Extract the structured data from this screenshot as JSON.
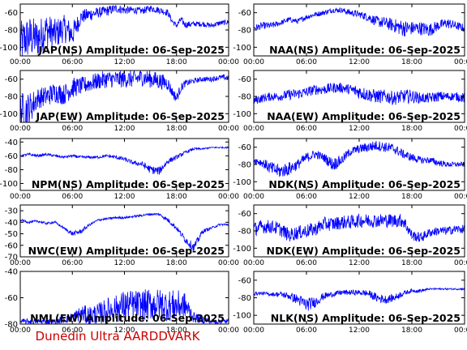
{
  "figure": {
    "footer": "Dunedin Ultra AARDDVARK",
    "colors": {
      "trace": "#0000ff",
      "axis": "#000000",
      "footer": "#cc0000"
    }
  },
  "chart_data": [
    {
      "type": "line",
      "title": "JAP(NS) Amplitude: 06-Sep-2025",
      "xlabel": "",
      "ylabel": "",
      "x_ticks": [
        "00:00",
        "06:00",
        "12:00",
        "18:00",
        "00:00"
      ],
      "xlim": [
        0,
        24
      ],
      "ylim": [
        -110,
        -50
      ],
      "y_ticks": [
        -100,
        -80,
        -60
      ],
      "grid": false,
      "series": [
        {
          "x": [
            0,
            1,
            2,
            3,
            4,
            5,
            6,
            7,
            8,
            9,
            10,
            11,
            12,
            13,
            14,
            15,
            16,
            17,
            17.5,
            18,
            18.5,
            19,
            20,
            21,
            22,
            23,
            24
          ],
          "y": [
            -95,
            -88,
            -90,
            -80,
            -85,
            -78,
            -85,
            -65,
            -62,
            -60,
            -58,
            -55,
            -57,
            -57,
            -58,
            -55,
            -57,
            -60,
            -70,
            -75,
            -68,
            -74,
            -73,
            -73,
            -75,
            -72,
            -71
          ],
          "spread": [
            25,
            25,
            22,
            20,
            18,
            16,
            15,
            8,
            8,
            6,
            6,
            5,
            5,
            4,
            4,
            4,
            4,
            4,
            3,
            3,
            4,
            4,
            3,
            3,
            3,
            3,
            3
          ]
        }
      ]
    },
    {
      "type": "line",
      "title": "NAA(NS) Amplitude: 06-Sep-2025",
      "xlabel": "",
      "ylabel": "",
      "x_ticks": [
        "00:00",
        "06:00",
        "12:00",
        "18:00",
        "00:00"
      ],
      "xlim": [
        0,
        24
      ],
      "ylim": [
        -110,
        -50
      ],
      "y_ticks": [
        -100,
        -80,
        -60
      ],
      "grid": false,
      "series": [
        {
          "x": [
            0,
            1,
            2,
            3,
            4,
            5,
            6,
            7,
            8,
            9,
            10,
            11,
            12,
            13,
            14,
            15,
            16,
            17,
            18,
            19,
            20,
            21,
            22,
            23,
            24
          ],
          "y": [
            -78,
            -75,
            -75,
            -72,
            -68,
            -70,
            -65,
            -62,
            -60,
            -57,
            -57,
            -60,
            -62,
            -65,
            -70,
            -72,
            -75,
            -78,
            -78,
            -78,
            -80,
            -75,
            -72,
            -75,
            -78
          ],
          "spread": [
            4,
            4,
            4,
            3,
            3,
            3,
            3,
            3,
            3,
            3,
            3,
            4,
            4,
            5,
            6,
            7,
            8,
            10,
            8,
            8,
            8,
            6,
            6,
            5,
            5
          ]
        }
      ]
    },
    {
      "type": "line",
      "title": "JAP(EW) Amplitude: 06-Sep-2025",
      "xlabel": "",
      "ylabel": "",
      "x_ticks": [
        "00:00",
        "06:00",
        "12:00",
        "18:00",
        "00:00"
      ],
      "xlim": [
        0,
        24
      ],
      "ylim": [
        -110,
        -50
      ],
      "y_ticks": [
        -100,
        -80,
        -60
      ],
      "grid": false,
      "series": [
        {
          "x": [
            0,
            1,
            2,
            3,
            4,
            5,
            6,
            7,
            8,
            9,
            10,
            11,
            12,
            13,
            14,
            15,
            16,
            17,
            17.5,
            18,
            18.5,
            19,
            20,
            21,
            22,
            23,
            24
          ],
          "y": [
            -95,
            -95,
            -82,
            -80,
            -75,
            -78,
            -70,
            -68,
            -65,
            -62,
            -60,
            -60,
            -60,
            -60,
            -58,
            -60,
            -62,
            -65,
            -75,
            -82,
            -70,
            -65,
            -62,
            -60,
            -60,
            -58,
            -58
          ],
          "spread": [
            20,
            20,
            12,
            12,
            12,
            12,
            12,
            10,
            10,
            10,
            10,
            10,
            10,
            10,
            10,
            10,
            10,
            8,
            6,
            6,
            5,
            4,
            3,
            3,
            3,
            3,
            3
          ]
        }
      ]
    },
    {
      "type": "line",
      "title": "NAA(EW) Amplitude: 06-Sep-2025",
      "xlabel": "",
      "ylabel": "",
      "x_ticks": [
        "00:00",
        "06:00",
        "12:00",
        "18:00",
        "00:00"
      ],
      "xlim": [
        0,
        24
      ],
      "ylim": [
        -110,
        -50
      ],
      "y_ticks": [
        -100,
        -80,
        -60
      ],
      "grid": false,
      "series": [
        {
          "x": [
            0,
            1,
            2,
            3,
            4,
            5,
            6,
            7,
            8,
            9,
            10,
            11,
            12,
            13,
            14,
            15,
            16,
            17,
            18,
            19,
            20,
            21,
            22,
            23,
            24
          ],
          "y": [
            -85,
            -82,
            -80,
            -80,
            -78,
            -77,
            -75,
            -72,
            -72,
            -70,
            -70,
            -72,
            -75,
            -78,
            -80,
            -80,
            -82,
            -80,
            -80,
            -82,
            -82,
            -80,
            -80,
            -80,
            -82
          ],
          "spread": [
            5,
            5,
            5,
            5,
            6,
            6,
            6,
            6,
            6,
            6,
            6,
            6,
            8,
            8,
            8,
            8,
            8,
            8,
            8,
            6,
            6,
            6,
            5,
            5,
            6
          ]
        }
      ]
    },
    {
      "type": "line",
      "title": "NPM(NS) Amplitude: 06-Sep-2025",
      "xlabel": "",
      "ylabel": "",
      "x_ticks": [
        "00:00",
        "06:00",
        "12:00",
        "18:00",
        "00:00"
      ],
      "xlim": [
        0,
        24
      ],
      "ylim": [
        -110,
        -35
      ],
      "y_ticks": [
        -100,
        -80,
        -60,
        -40
      ],
      "grid": false,
      "series": [
        {
          "x": [
            0,
            1,
            2,
            3,
            4,
            5,
            6,
            7,
            8,
            9,
            10,
            11,
            12,
            13,
            14,
            15,
            16,
            17,
            18,
            19,
            20,
            21,
            22,
            23,
            24
          ],
          "y": [
            -60,
            -58,
            -60,
            -58,
            -60,
            -62,
            -60,
            -62,
            -62,
            -62,
            -60,
            -62,
            -65,
            -70,
            -72,
            -80,
            -82,
            -68,
            -62,
            -55,
            -50,
            -50,
            -48,
            -48,
            -48
          ],
          "spread": [
            2,
            2,
            2,
            2,
            2,
            2,
            2,
            2,
            2,
            2,
            2,
            3,
            3,
            3,
            4,
            6,
            6,
            4,
            3,
            2,
            2,
            1,
            1,
            1,
            1
          ]
        }
      ]
    },
    {
      "type": "line",
      "title": "NDK(NS) Amplitude: 06-Sep-2025",
      "xlabel": "",
      "ylabel": "",
      "x_ticks": [
        "00:00",
        "06:00",
        "12:00",
        "18:00",
        "00:00"
      ],
      "xlim": [
        0,
        24
      ],
      "ylim": [
        -110,
        -50
      ],
      "y_ticks": [
        -100,
        -80,
        -60
      ],
      "grid": false,
      "series": [
        {
          "x": [
            0,
            1,
            2,
            3,
            4,
            5,
            6,
            7,
            8,
            9,
            10,
            11,
            12,
            13,
            14,
            15,
            16,
            17,
            18,
            19,
            20,
            21,
            22,
            23,
            24
          ],
          "y": [
            -75,
            -78,
            -85,
            -88,
            -85,
            -80,
            -72,
            -68,
            -72,
            -80,
            -75,
            -65,
            -62,
            -60,
            -58,
            -60,
            -62,
            -68,
            -72,
            -75,
            -75,
            -78,
            -80,
            -80,
            -80
          ],
          "spread": [
            4,
            5,
            8,
            8,
            8,
            6,
            6,
            5,
            5,
            8,
            6,
            5,
            5,
            6,
            6,
            6,
            6,
            5,
            5,
            4,
            4,
            4,
            3,
            3,
            3
          ]
        }
      ]
    },
    {
      "type": "line",
      "title": "NWC(EW) Amplitude: 06-Sep-2025",
      "xlabel": "",
      "ylabel": "",
      "x_ticks": [
        "00:00",
        "06:00",
        "12:00",
        "18:00",
        "00:00"
      ],
      "xlim": [
        0,
        24
      ],
      "ylim": [
        -70,
        -25
      ],
      "y_ticks": [
        -70,
        -60,
        -50,
        -40,
        -30
      ],
      "grid": false,
      "series": [
        {
          "x": [
            0,
            1,
            2,
            3,
            4,
            5,
            6,
            7,
            8,
            9,
            10,
            11,
            12,
            13,
            14,
            15,
            16,
            17,
            18,
            19,
            20,
            21,
            22,
            23,
            24
          ],
          "y": [
            -38,
            -40,
            -39,
            -41,
            -40,
            -45,
            -50,
            -48,
            -42,
            -38,
            -37,
            -36,
            -36,
            -35,
            -34,
            -33,
            -33,
            -38,
            -45,
            -55,
            -62,
            -48,
            -45,
            -42,
            -42
          ],
          "spread": [
            1,
            1,
            1,
            1,
            1,
            1,
            2,
            2,
            1,
            1,
            1,
            1,
            1,
            1,
            1,
            1,
            1,
            2,
            2,
            3,
            4,
            2,
            1,
            1,
            1
          ]
        }
      ]
    },
    {
      "type": "line",
      "title": "NDK(EW) Amplitude: 06-Sep-2025",
      "xlabel": "",
      "ylabel": "",
      "x_ticks": [
        "00:00",
        "06:00",
        "12:00",
        "18:00",
        "00:00"
      ],
      "xlim": [
        0,
        24
      ],
      "ylim": [
        -110,
        -50
      ],
      "y_ticks": [
        -100,
        -80,
        -60
      ],
      "grid": false,
      "series": [
        {
          "x": [
            0,
            1,
            2,
            3,
            4,
            5,
            6,
            7,
            8,
            9,
            10,
            11,
            12,
            13,
            14,
            15,
            16,
            17,
            18,
            19,
            20,
            21,
            22,
            23,
            24
          ],
          "y": [
            -78,
            -75,
            -75,
            -78,
            -85,
            -82,
            -80,
            -78,
            -72,
            -72,
            -70,
            -70,
            -68,
            -68,
            -68,
            -68,
            -68,
            -68,
            -85,
            -88,
            -82,
            -80,
            -80,
            -78,
            -78
          ],
          "spread": [
            8,
            8,
            8,
            8,
            8,
            8,
            8,
            8,
            8,
            8,
            8,
            8,
            8,
            8,
            8,
            8,
            8,
            8,
            6,
            6,
            5,
            5,
            5,
            5,
            5
          ]
        }
      ]
    },
    {
      "type": "line",
      "title": "NML(EW) Amplitude: 06-Sep-2025",
      "xlabel": "",
      "ylabel": "",
      "x_ticks": [
        "00:00",
        "06:00",
        "12:00",
        "18:00",
        "00:00"
      ],
      "xlim": [
        0,
        24
      ],
      "ylim": [
        -80,
        -40
      ],
      "y_ticks": [
        -80,
        -60,
        -40
      ],
      "grid": false,
      "series": [
        {
          "x": [
            0,
            2,
            4,
            6,
            7,
            8,
            9,
            10,
            11,
            12,
            13,
            14,
            15,
            16,
            17,
            18,
            19,
            20,
            22,
            24
          ],
          "y": [
            -78,
            -78,
            -78,
            -75,
            -72,
            -74,
            -72,
            -70,
            -68,
            -66,
            -66,
            -66,
            -65,
            -65,
            -66,
            -66,
            -66,
            -75,
            -78,
            -78
          ],
          "spread": [
            2,
            2,
            2,
            4,
            6,
            8,
            8,
            10,
            10,
            12,
            12,
            12,
            12,
            12,
            12,
            12,
            10,
            4,
            2,
            2
          ]
        }
      ]
    },
    {
      "type": "line",
      "title": "NLK(NS) Amplitude: 06-Sep-2025",
      "xlabel": "",
      "ylabel": "",
      "x_ticks": [
        "00:00",
        "06:00",
        "12:00",
        "18:00",
        "00:00"
      ],
      "xlim": [
        0,
        24
      ],
      "ylim": [
        -110,
        -50
      ],
      "y_ticks": [
        -100,
        -80,
        -60
      ],
      "grid": false,
      "series": [
        {
          "x": [
            0,
            1,
            2,
            3,
            4,
            5,
            6,
            7,
            8,
            9,
            10,
            11,
            12,
            13,
            14,
            15,
            16,
            17,
            18,
            19,
            20,
            21,
            22,
            23,
            24
          ],
          "y": [
            -75,
            -75,
            -76,
            -76,
            -78,
            -82,
            -88,
            -85,
            -78,
            -76,
            -74,
            -74,
            -74,
            -75,
            -80,
            -82,
            -80,
            -75,
            -72,
            -72,
            -70,
            -70,
            -70,
            -70,
            -70
          ],
          "spread": [
            2,
            2,
            2,
            3,
            4,
            6,
            8,
            6,
            4,
            3,
            3,
            3,
            3,
            4,
            5,
            5,
            4,
            3,
            2,
            2,
            1,
            1,
            1,
            1,
            1
          ]
        }
      ]
    }
  ]
}
